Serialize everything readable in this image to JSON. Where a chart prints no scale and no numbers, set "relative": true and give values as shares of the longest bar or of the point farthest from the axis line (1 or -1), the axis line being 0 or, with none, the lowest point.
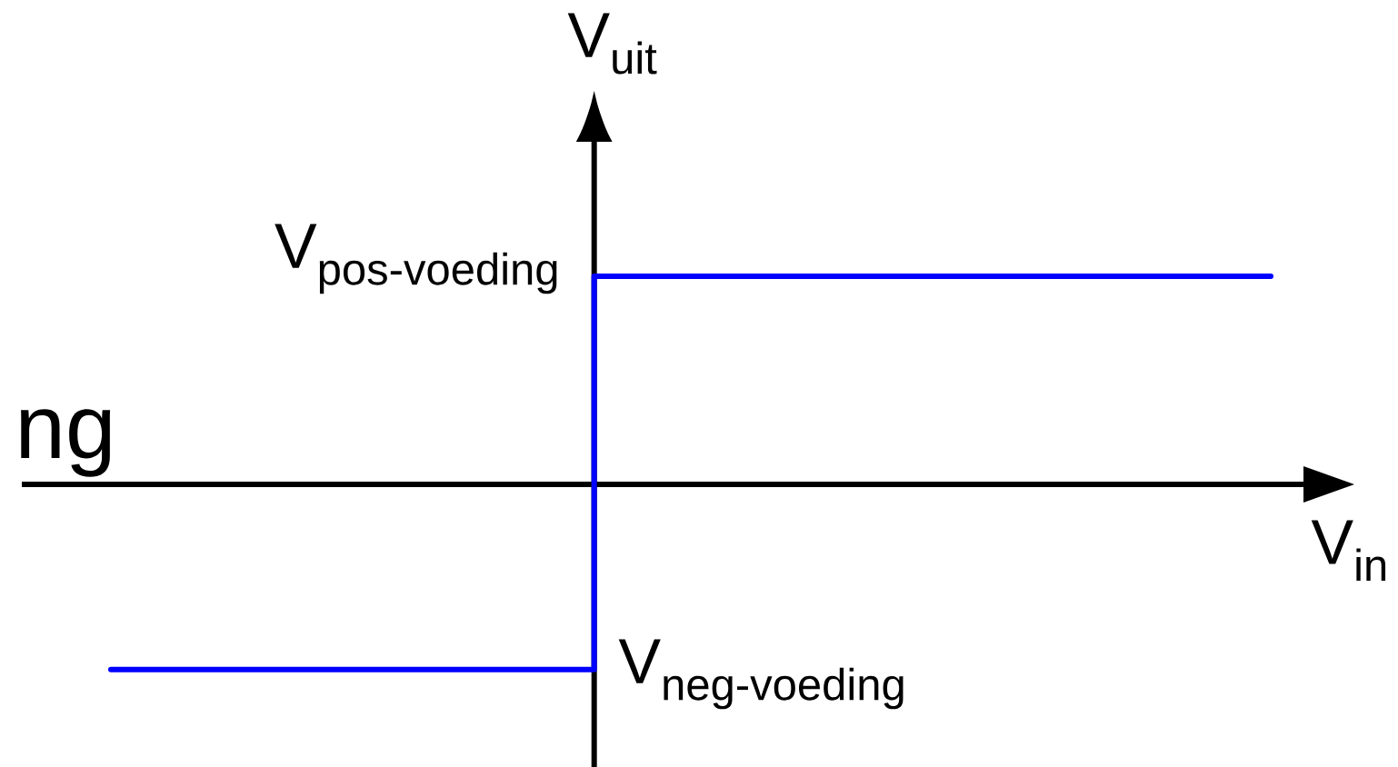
{
  "chart_data": {
    "type": "step",
    "relative": true,
    "xlabel": "V$_{in}$",
    "ylabel": "V$_{uit}$",
    "categories": [
      null,
      null,
      null,
      null,
      null,
      null,
      null,
      null,
      null,
      null,
      null,
      null,
      null
    ],
    "values": [
      -0.89,
      -0.89,
      -0.89,
      -0.89,
      -0.89,
      1,
      1,
      1,
      1,
      1,
      1,
      1,
      1
    ],
    "color": "#0000ff",
    "annotations": [
      "ng",
      "\\text{V}_{\\text{pos-voeding}}",
      "\\text{V}_{\\text{neg-voeding}}"
    ]
  }
}
